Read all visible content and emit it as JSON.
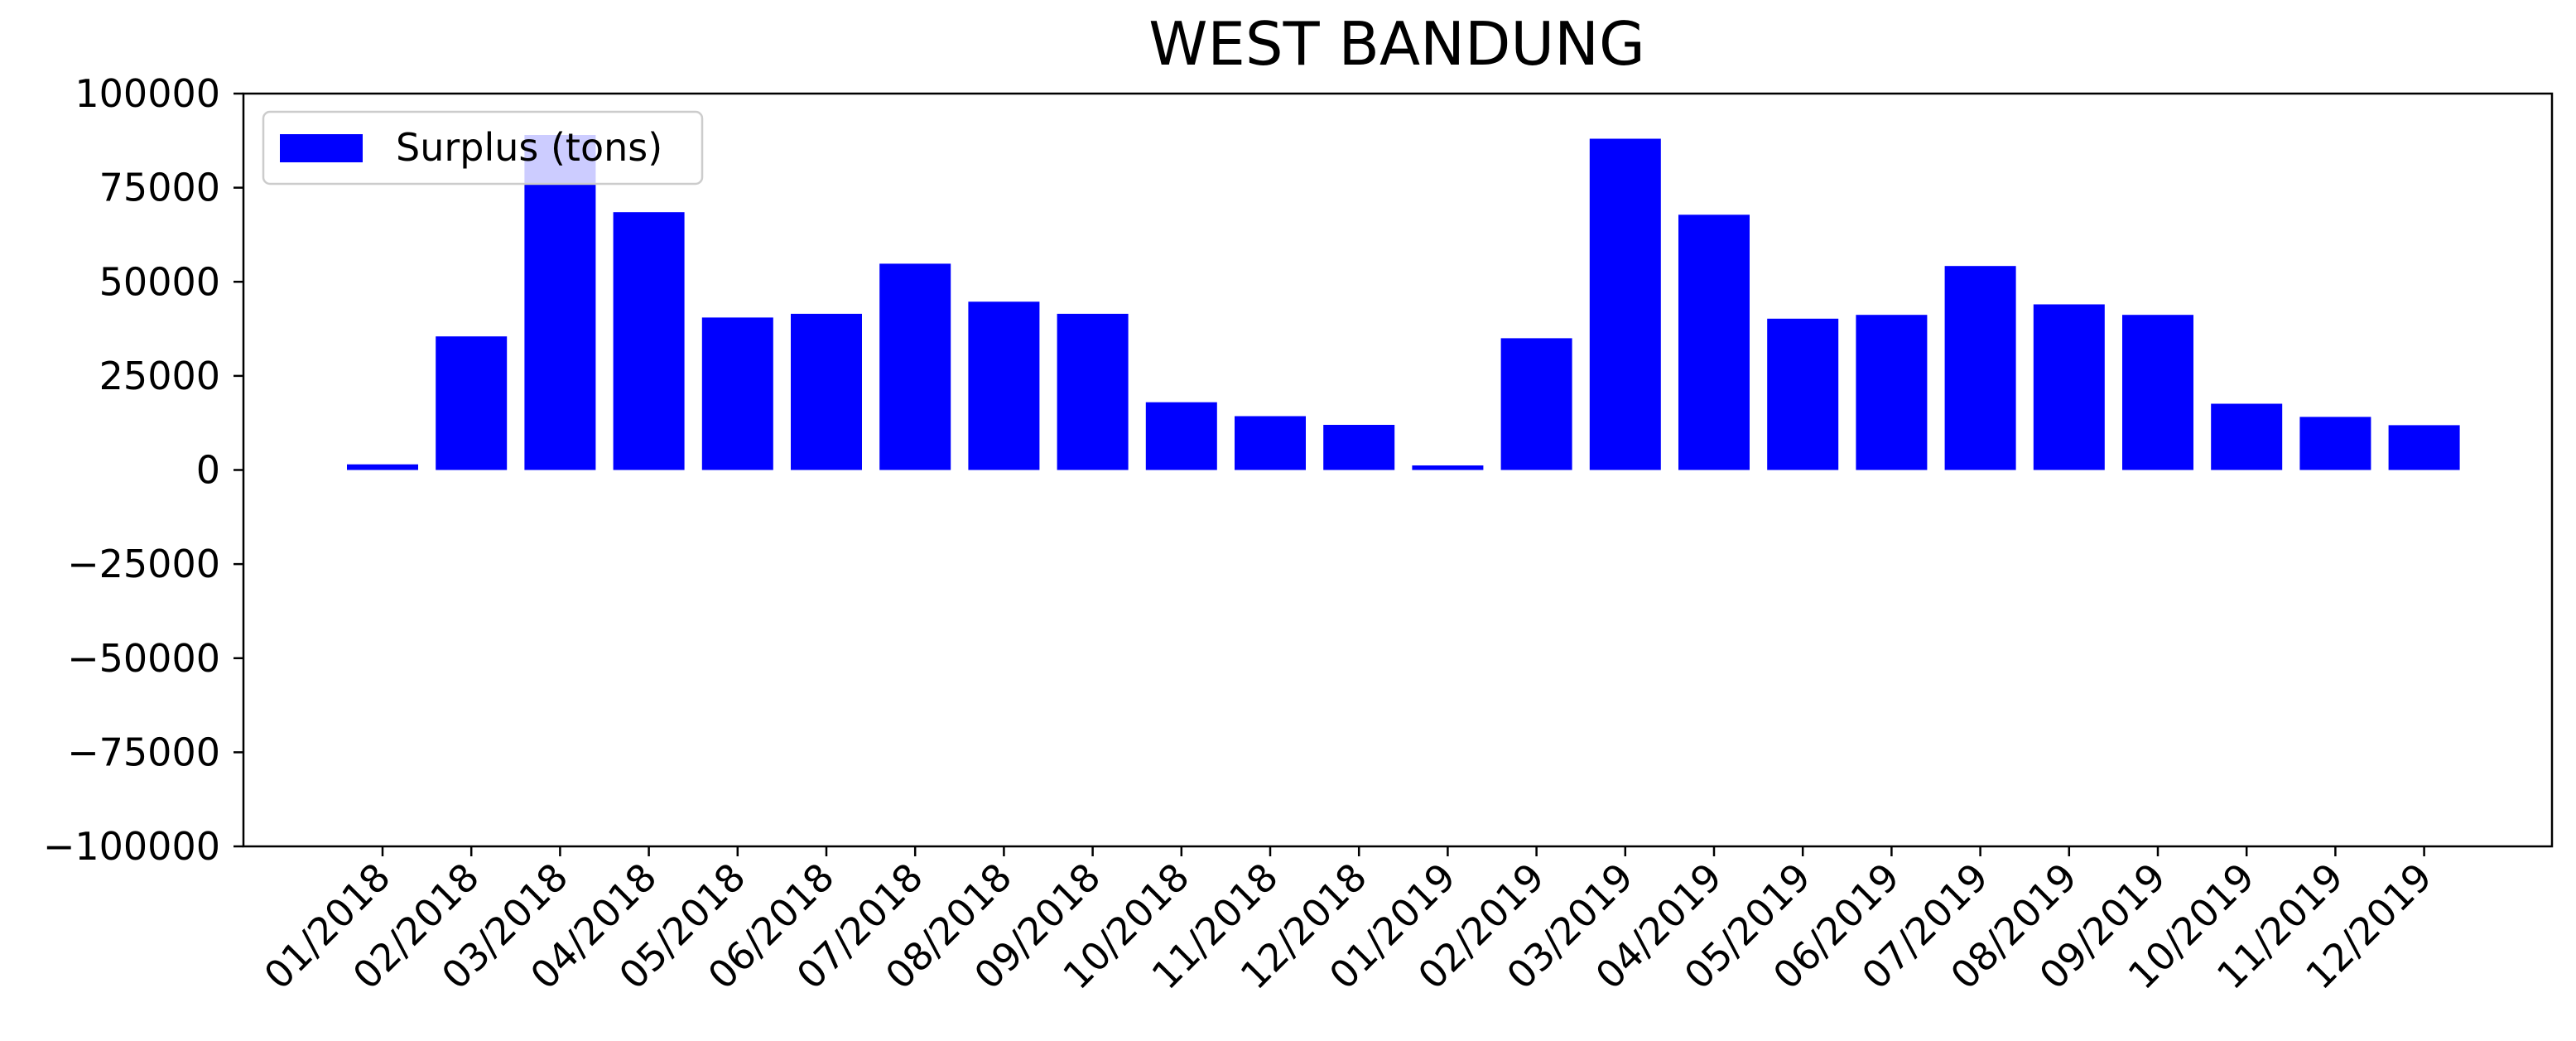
{
  "chart_data": {
    "type": "bar",
    "title": "WEST BANDUNG",
    "xlabel": "",
    "ylabel": "",
    "ylim": [
      -100000,
      100000
    ],
    "yticks": [
      -100000,
      -75000,
      -50000,
      -25000,
      0,
      25000,
      50000,
      75000,
      100000
    ],
    "ytick_labels": [
      "−100000",
      "−75000",
      "−50000",
      "−25000",
      "0",
      "25000",
      "50000",
      "75000",
      "100000"
    ],
    "grid": false,
    "legend_position": "top-left",
    "categories": [
      "01/2018",
      "02/2018",
      "03/2018",
      "04/2018",
      "05/2018",
      "06/2018",
      "07/2018",
      "08/2018",
      "09/2018",
      "10/2018",
      "11/2018",
      "12/2018",
      "01/2019",
      "02/2019",
      "03/2019",
      "04/2019",
      "05/2019",
      "06/2019",
      "07/2019",
      "08/2019",
      "09/2019",
      "10/2019",
      "11/2019",
      "12/2019"
    ],
    "series": [
      {
        "name": "Surplus (tons)",
        "color": "#0000ff",
        "values": [
          1500,
          35500,
          89000,
          68500,
          40500,
          41500,
          54800,
          44700,
          41500,
          18000,
          14300,
          12000,
          1200,
          35000,
          88000,
          67800,
          40200,
          41200,
          54200,
          44000,
          41200,
          17600,
          14100,
          11900
        ]
      }
    ]
  }
}
